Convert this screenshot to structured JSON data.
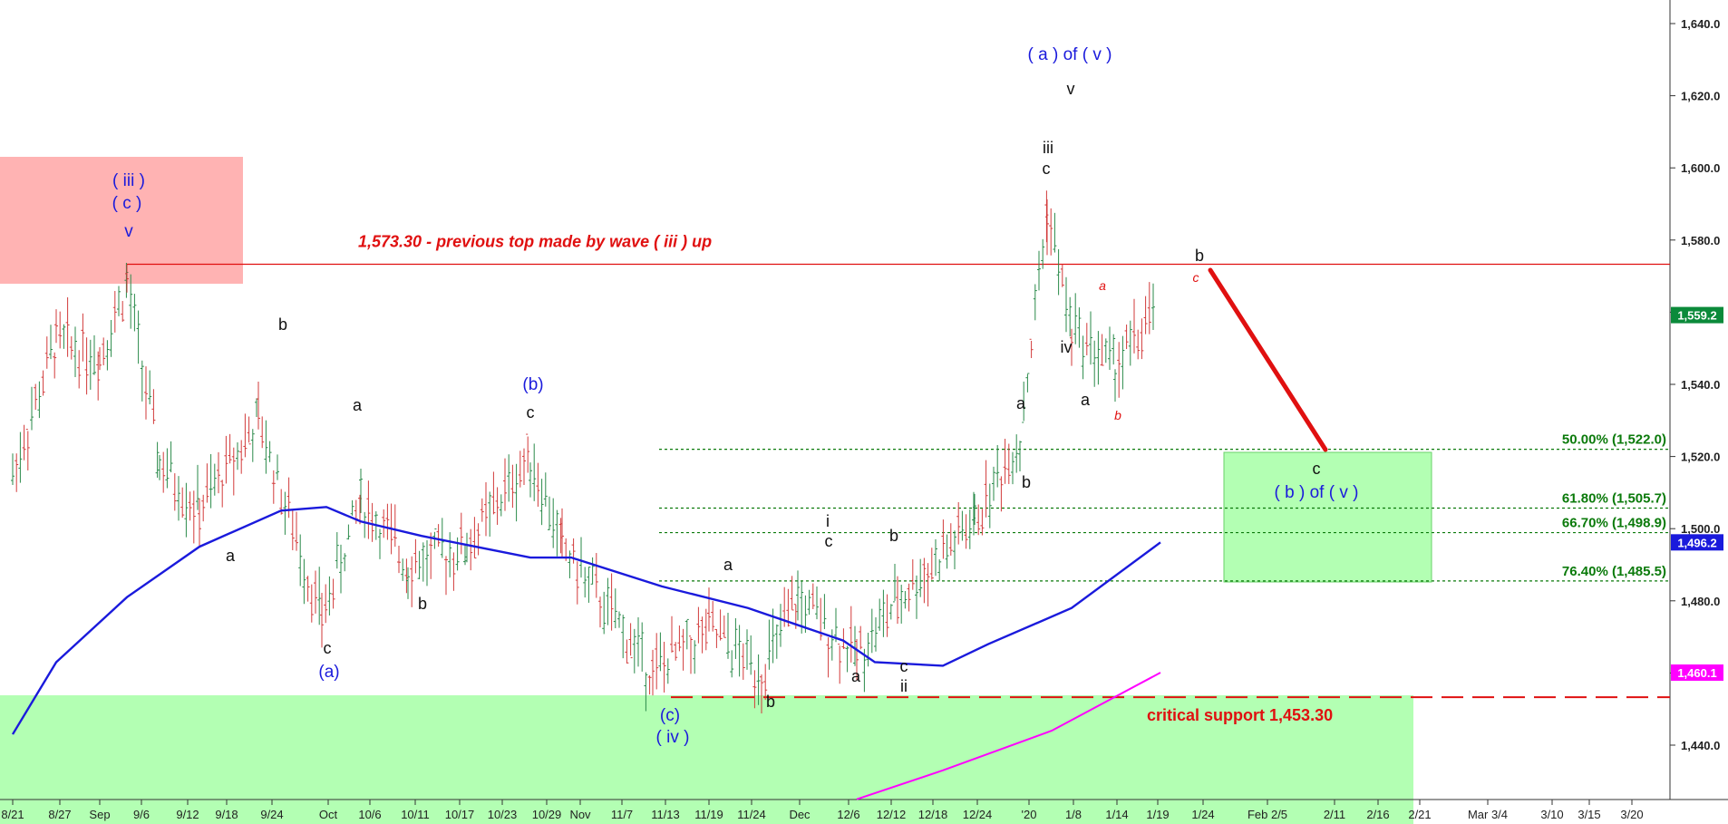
{
  "chart_data": {
    "type": "line",
    "title": "",
    "xlabel": "",
    "ylabel": "",
    "ylim": [
      1425,
      1645
    ],
    "x_tick_labels": [
      "8/21",
      "8/27",
      "Sep",
      "9/6",
      "9/12",
      "9/18",
      "9/24",
      "Oct",
      "10/6",
      "10/11",
      "10/17",
      "10/23",
      "10/29",
      "Nov",
      "11/7",
      "11/13",
      "11/19",
      "11/24",
      "Dec",
      "12/6",
      "12/12",
      "12/18",
      "12/24",
      "'20",
      "1/8",
      "1/14",
      "1/19",
      "1/24",
      "Feb 2/5",
      "2/11",
      "2/16",
      "2/21",
      "Mar 3/4",
      "3/10",
      "3/15",
      "3/20"
    ],
    "y_tick_labels": [
      "1,440.0",
      "1,460.0",
      "1,480.0",
      "1,500.0",
      "1,520.0",
      "1,540.0",
      "1,560.0",
      "1,580.0",
      "1,600.0",
      "1,620.0",
      "1,640.0"
    ],
    "y_ticks": [
      1440,
      1460,
      1480,
      1500,
      1520,
      1540,
      1560,
      1580,
      1600,
      1620,
      1640
    ],
    "price_anchors": [
      {
        "date": "8/21",
        "close": 1515
      },
      {
        "date": "8/27",
        "close": 1552
      },
      {
        "date": "9/1",
        "close": 1548
      },
      {
        "date": "9/5",
        "close": 1568
      },
      {
        "date": "9/10",
        "close": 1518
      },
      {
        "date": "9/16",
        "close": 1505
      },
      {
        "date": "9/24",
        "close": 1530
      },
      {
        "date": "10/1",
        "close": 1475
      },
      {
        "date": "10/7",
        "close": 1508
      },
      {
        "date": "10/14",
        "close": 1490
      },
      {
        "date": "10/22",
        "close": 1495
      },
      {
        "date": "10/29",
        "close": 1520
      },
      {
        "date": "11/5",
        "close": 1495
      },
      {
        "date": "11/12",
        "close": 1460
      },
      {
        "date": "11/19",
        "close": 1472
      },
      {
        "date": "11/26",
        "close": 1460
      },
      {
        "date": "12/3",
        "close": 1480
      },
      {
        "date": "12/9",
        "close": 1465
      },
      {
        "date": "12/17",
        "close": 1480
      },
      {
        "date": "12/26",
        "close": 1502
      },
      {
        "date": "1/2",
        "close": 1525
      },
      {
        "date": "1/6",
        "close": 1588
      },
      {
        "date": "1/9",
        "close": 1555
      },
      {
        "date": "1/14",
        "close": 1545
      },
      {
        "date": "1/20",
        "close": 1559.2
      }
    ],
    "series": [
      {
        "name": "",
        "type": "line",
        "color": "#1a1adc",
        "points": [
          [
            "8/21",
            1443
          ],
          [
            "8/27",
            1463
          ],
          [
            "9/5",
            1481
          ],
          [
            "9/16",
            1495
          ],
          [
            "9/27",
            1505
          ],
          [
            "10/2",
            1506
          ],
          [
            "10/7",
            1502
          ],
          [
            "10/16",
            1498
          ],
          [
            "10/29",
            1492
          ],
          [
            "11/6",
            1492
          ],
          [
            "11/13",
            1484
          ],
          [
            "11/24",
            1478
          ],
          [
            "12/6",
            1469
          ],
          [
            "12/16",
            1463
          ],
          [
            "12/23",
            1462
          ],
          [
            "12/30",
            1468
          ],
          [
            "1/9",
            1478
          ],
          [
            "1/21",
            1496.2
          ]
        ]
      },
      {
        "name": "",
        "type": "line",
        "color": "#ff00ff",
        "points": [
          [
            "12/9",
            1425
          ],
          [
            "12/23",
            1433
          ],
          [
            "1/7",
            1444
          ],
          [
            "1/21",
            1460.1
          ]
        ]
      }
    ],
    "last_values": [
      {
        "label": "1,559.2",
        "value": 1559.2,
        "color": "#0b8a3a"
      },
      {
        "label": "1,496.2",
        "value": 1496.2,
        "color": "#1a1adc"
      },
      {
        "label": "1,460.1",
        "value": 1460.1,
        "color": "#ff00ff"
      }
    ],
    "levels": [
      {
        "value": 1573.3,
        "label": "1,573.30 - previous top made by wave ( iii ) up",
        "color": "#e01010",
        "style": "solid"
      },
      {
        "value": 1453.3,
        "label": "critical support 1,453.30",
        "color": "#e01010",
        "style": "dashed"
      }
    ],
    "fib_levels": [
      {
        "value": 1522.0,
        "label": "50.00% (1,522.0)"
      },
      {
        "value": 1505.7,
        "label": "61.80% (1,505.7)"
      },
      {
        "value": 1498.9,
        "label": "66.70% (1,498.9)"
      },
      {
        "value": 1485.5,
        "label": "76.40% (1,485.5)"
      }
    ],
    "wave_labels": {
      "blue": [
        "( iii )",
        "( c )",
        "v",
        "(b)",
        "(a)",
        "(c)",
        "( iv )",
        "( a ) of ( v )",
        "( b ) of ( v )"
      ],
      "black": [
        "b",
        "a",
        "c",
        "a",
        "b",
        "c",
        "a",
        "b",
        "a",
        "b",
        "i",
        "c",
        "b",
        "a",
        "c",
        "ii",
        "a",
        "b",
        "iii",
        "c",
        "v",
        "iv",
        "a",
        "b",
        "c"
      ],
      "red": [
        "a",
        "b",
        "c"
      ]
    },
    "colors": {
      "price": "#2a8a4a",
      "ma": "#1a1adc",
      "trend": "#ff00ff",
      "resistance": "#e01010",
      "projection": "#e01010",
      "zone_fill": "#b3ffb3",
      "top_zone_fill": "#ffb3b3",
      "fib_line": "#0b7a0b"
    }
  }
}
